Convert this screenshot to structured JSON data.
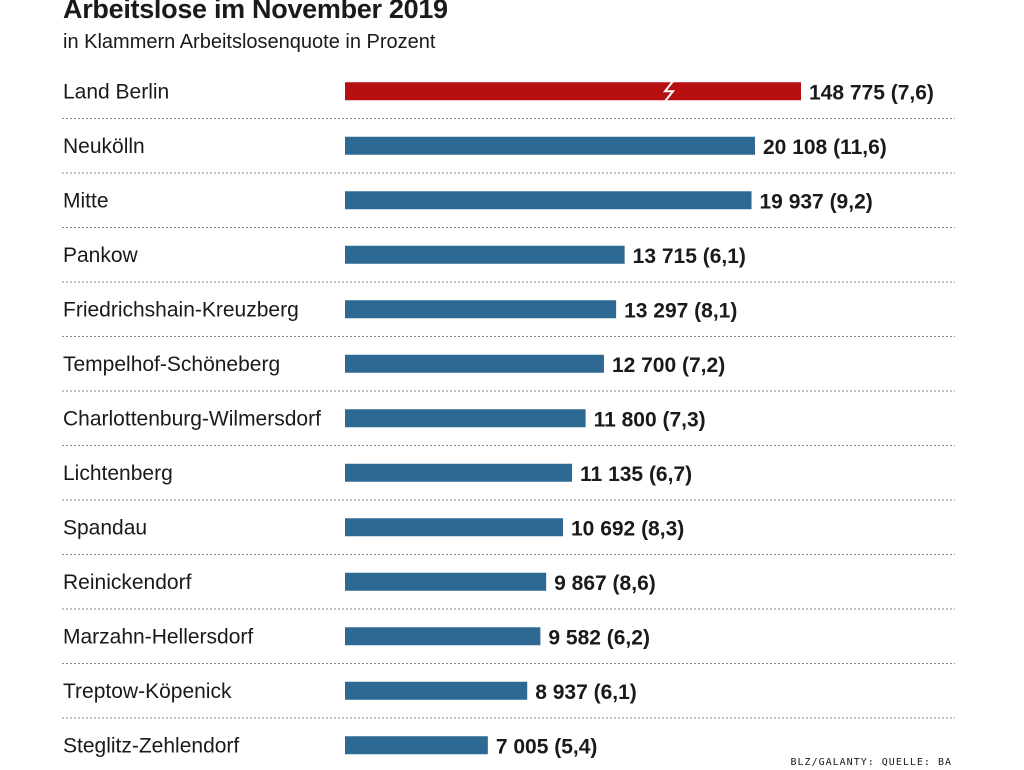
{
  "chart_data": {
    "type": "bar",
    "orientation": "horizontal",
    "title": "Arbeitslose im November 2019",
    "subtitle": "in Klammern Arbeitslosenquote in Prozent",
    "source": "BLZ/GALANTY: QUELLE: BA",
    "highlight_color": "#b50f0f",
    "bar_color": "#2e6993",
    "axis_break": true,
    "categories": [
      "Land Berlin",
      "Neukölln",
      "Mitte",
      "Pankow",
      "Friedrichshain-Kreuzberg",
      "Tempelhof-Schöneberg",
      "Charlottenburg-Wilmersdorf",
      "Lichtenberg",
      "Spandau",
      "Reinickendorf",
      "Marzahn-Hellersdorf",
      "Treptow-Köpenick",
      "Steglitz-Zehlendorf"
    ],
    "values": [
      148775,
      20108,
      19937,
      13715,
      13297,
      12700,
      11800,
      11135,
      10692,
      9867,
      9582,
      8937,
      7005
    ],
    "rates": [
      7.6,
      11.6,
      9.2,
      6.1,
      8.1,
      7.2,
      7.3,
      6.7,
      8.3,
      8.6,
      6.2,
      6.1,
      5.4
    ],
    "labels": [
      "148 775 (7,6)",
      "20 108 (11,6)",
      "19 937 (9,2)",
      "13 715 (6,1)",
      "13 297 (8,1)",
      "12 700 (7,2)",
      "11 800 (7,3)",
      "11 135 (6,7)",
      "10 692 (8,3)",
      "9 867 (8,6)",
      "9 582 (6,2)",
      "8 937 (6,1)",
      "7 005 (5,4)"
    ]
  }
}
